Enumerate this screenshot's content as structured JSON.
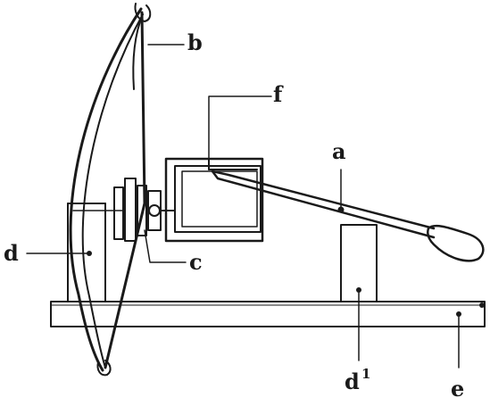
{
  "diagram": {
    "labels": {
      "a": "a",
      "b": "b",
      "c": "c",
      "d": "d",
      "d1_base": "d",
      "d1_sup": "1",
      "e": "e",
      "f": "f"
    },
    "colors": {
      "ink": "#1a1a1a",
      "paper": "#ffffff"
    }
  }
}
